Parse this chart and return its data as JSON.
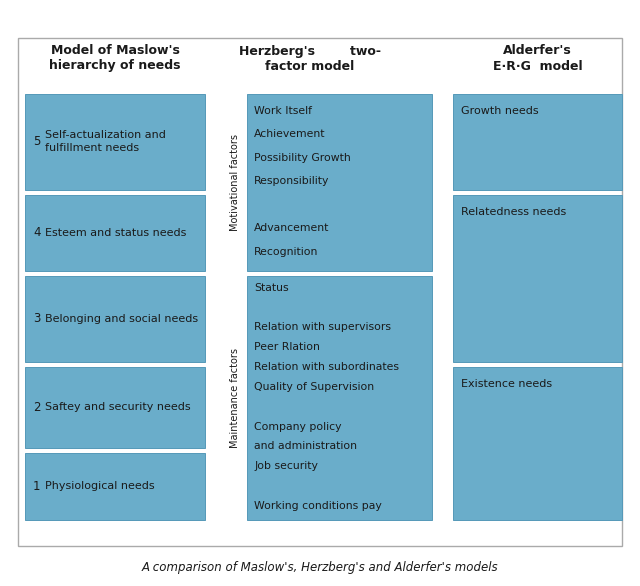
{
  "title": "A comparison of Maslow's, Herzberg's and Alderfer's models",
  "background_color": "#ffffff",
  "box_color": "#6aadca",
  "border_color": "#5599b8",
  "outer_border_color": "#aaaaaa",
  "col1_header_line1": "Model of Maslow's",
  "col1_header_line2": "hierarchy of needs",
  "col2_header_line1": "Herzberg's        two-",
  "col2_header_line2": "factor model",
  "col3_header_line1": "Alderfer's",
  "col3_header_line2": "E·R·G  model",
  "maslow_items": [
    {
      "num": "5",
      "text": "Self-actualization and\nfulfillment needs"
    },
    {
      "num": "4",
      "text": "Esteem and status needs"
    },
    {
      "num": "3",
      "text": "Belonging and social needs"
    },
    {
      "num": "2",
      "text": "Saftey and security needs"
    },
    {
      "num": "1",
      "text": "Physiological needs"
    }
  ],
  "herzberg_motivational": [
    "Work Itself",
    "Achievement",
    "Possibility Growth",
    "Responsibility",
    "",
    "Advancement",
    "Recognition"
  ],
  "herzberg_maintenance": [
    "Status",
    "",
    "Relation with supervisors",
    "Peer Rlation",
    "Relation with subordinates",
    "Quality of Supervision",
    "",
    "Company policy",
    "and administration",
    "Job security",
    "",
    "Working conditions pay"
  ],
  "motivational_label": "Motivational factors",
  "maintenance_label": "Maintenance factors",
  "alderfer_labels": [
    "Growth needs",
    "Relatedness needs",
    "Existence needs"
  ]
}
